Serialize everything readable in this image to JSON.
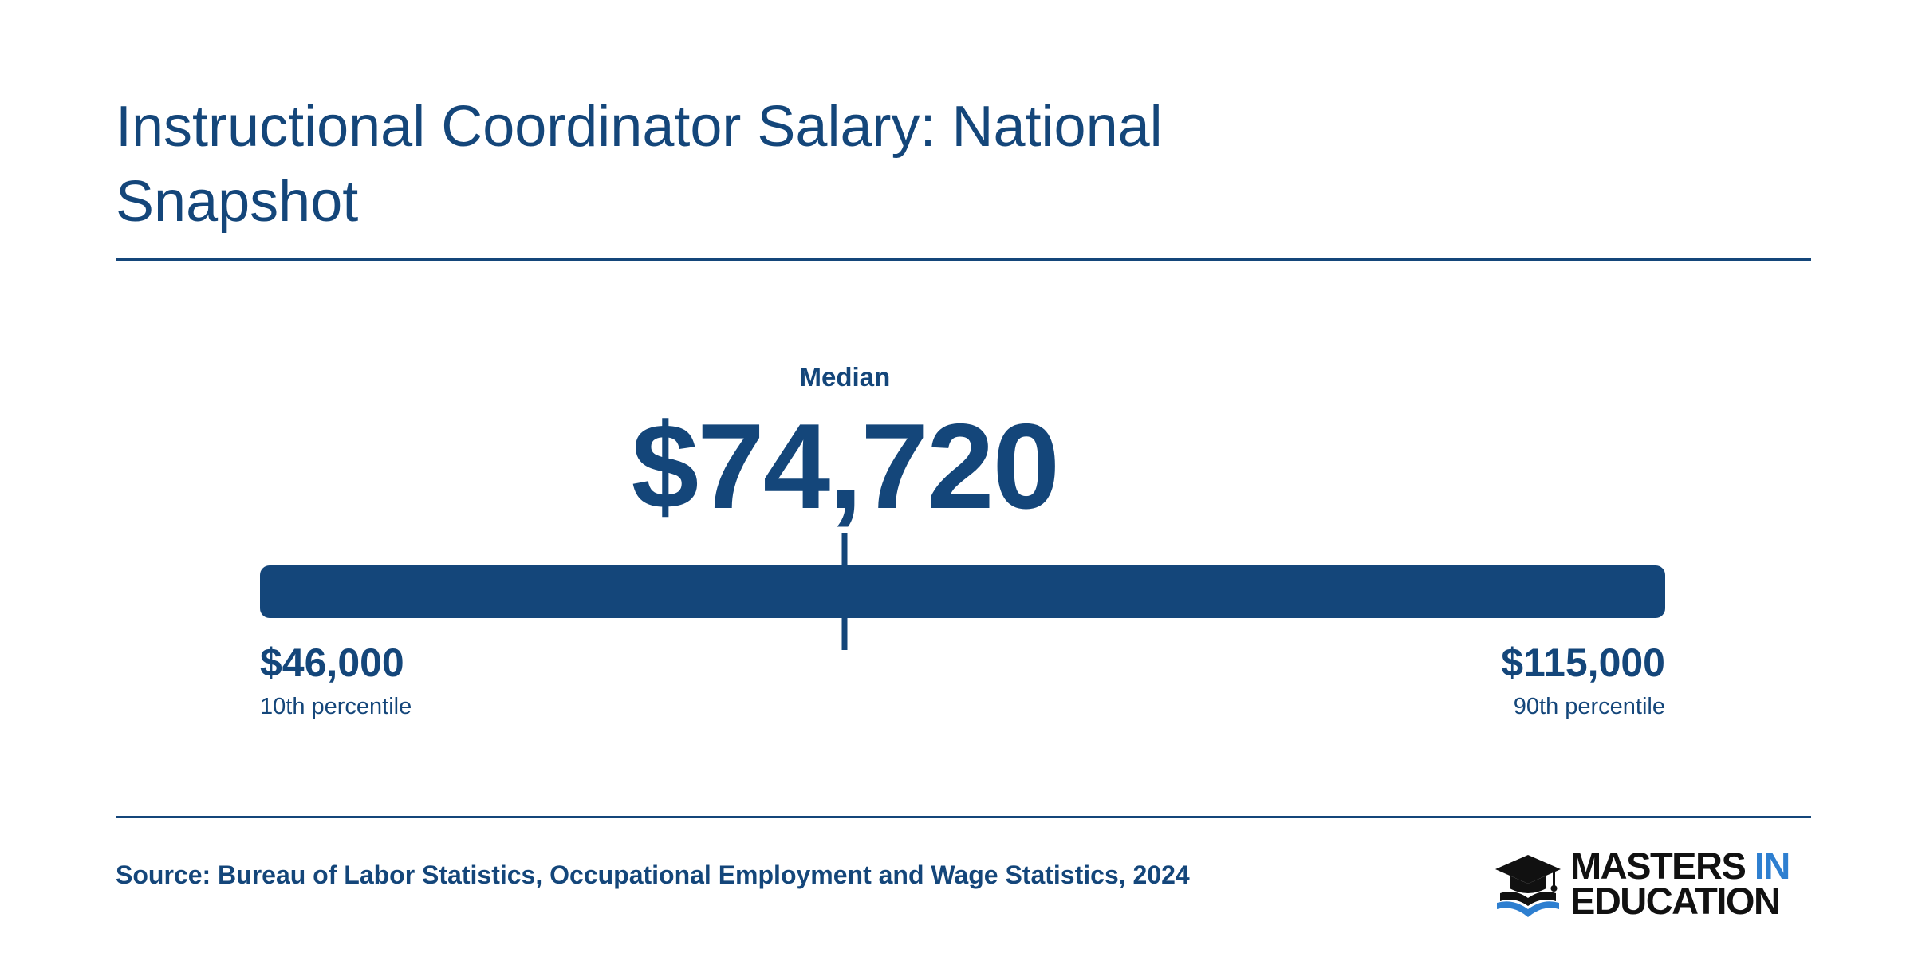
{
  "colors": {
    "primary": "#14467a",
    "logo_text": "#111111",
    "logo_accent": "#2e7fd0"
  },
  "header": {
    "title": "Instructional Coordinator Salary: National Snapshot"
  },
  "chart_data": {
    "type": "range",
    "title": "Instructional Coordinator Salary: National Snapshot",
    "median": {
      "label": "Median",
      "value": 74720,
      "display": "$74,720"
    },
    "low": {
      "label": "10th percentile",
      "value": 46000,
      "display": "$46,000"
    },
    "high": {
      "label": "90th percentile",
      "value": 115000,
      "display": "$115,000"
    },
    "range": [
      46000,
      115000
    ]
  },
  "footer": {
    "source": "Source: Bureau of Labor Statistics, Occupational Employment and Wage Statistics, 2024",
    "logo": {
      "line1_main": "MASTERS",
      "line1_accent": "IN",
      "line2": "EDUCATION",
      "icon": "graduation-cap-book-icon"
    }
  }
}
